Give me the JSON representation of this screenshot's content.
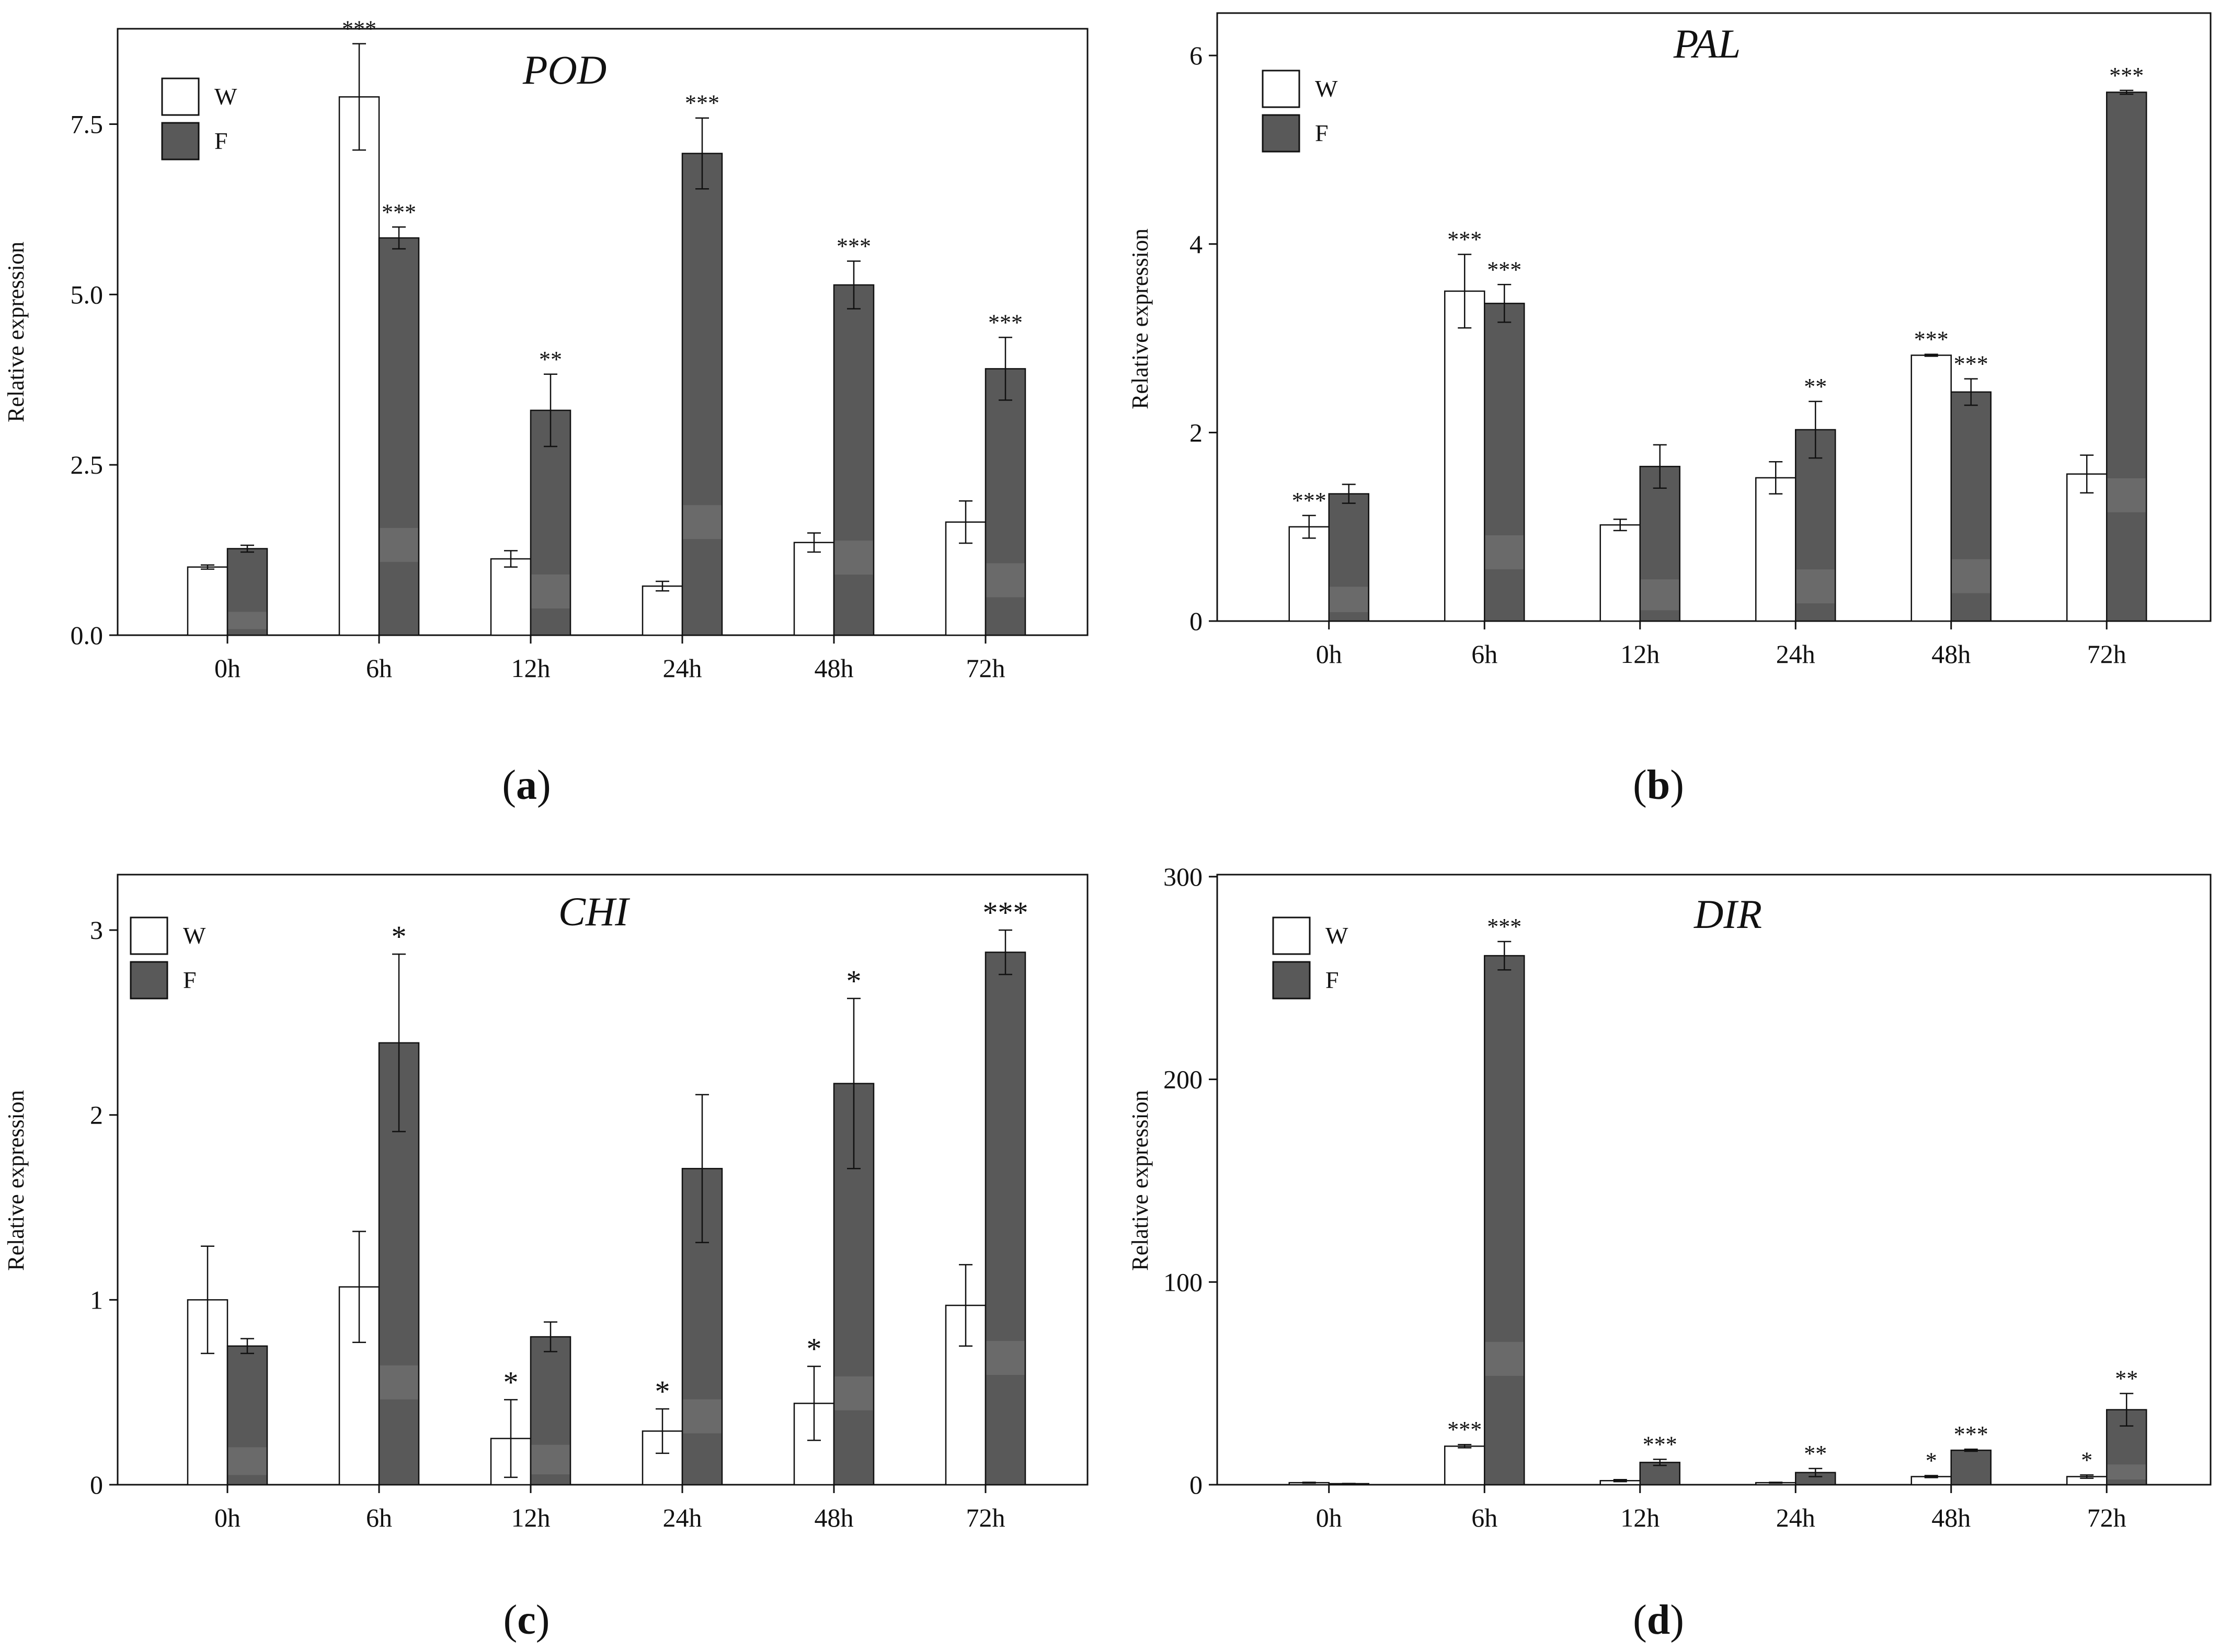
{
  "colors": {
    "w_fill": "#ffffff",
    "f_fill": "#595959",
    "f_band": "#6a6a6a",
    "stroke": "#111111"
  },
  "chart_data": [
    {
      "type": "bar",
      "panel_label": "(a)",
      "panel_letter": "a",
      "title": "POD",
      "xlabel": "",
      "ylabel": "Relative expression",
      "ylim": [
        0,
        8.9
      ],
      "yticks": [
        0,
        2.5,
        5,
        7.5
      ],
      "ytick_labels": [
        "0.0",
        "2.5",
        "5.0",
        "7.5"
      ],
      "categories": [
        "0h",
        "6h",
        "12h",
        "24h",
        "48h",
        "72h"
      ],
      "legend_position": "top-left",
      "series": [
        {
          "name": "W",
          "values": [
            1.0,
            7.9,
            1.12,
            0.72,
            1.36,
            1.66
          ],
          "errors": [
            0.03,
            0.78,
            0.12,
            0.07,
            0.14,
            0.31
          ],
          "sig": [
            "",
            "***",
            "",
            "",
            "",
            ""
          ]
        },
        {
          "name": "F",
          "values": [
            1.27,
            5.83,
            3.3,
            7.07,
            5.14,
            3.91
          ],
          "errors": [
            0.05,
            0.16,
            0.53,
            0.52,
            0.35,
            0.46
          ],
          "sig": [
            "",
            "***",
            "**",
            "***",
            "***",
            "***"
          ]
        }
      ]
    },
    {
      "type": "bar",
      "panel_label": "(b)",
      "panel_letter": "b",
      "title": "PAL",
      "xlabel": "",
      "ylabel": "Relative expression",
      "ylim": [
        0,
        6.45
      ],
      "yticks": [
        0,
        2,
        4,
        6
      ],
      "ytick_labels": [
        "0",
        "2",
        "4",
        "6"
      ],
      "categories": [
        "0h",
        "6h",
        "12h",
        "24h",
        "48h",
        "72h"
      ],
      "legend_position": "top-left",
      "series": [
        {
          "name": "W",
          "values": [
            1.0,
            3.5,
            1.02,
            1.52,
            2.82,
            1.56
          ],
          "errors": [
            0.12,
            0.39,
            0.06,
            0.17,
            0.01,
            0.2
          ],
          "sig": [
            "***",
            "***",
            "",
            "",
            "***",
            ""
          ]
        },
        {
          "name": "F",
          "values": [
            1.35,
            3.37,
            1.64,
            2.03,
            2.43,
            5.61
          ],
          "errors": [
            0.1,
            0.2,
            0.23,
            0.3,
            0.14,
            0.02
          ],
          "sig": [
            "",
            "***",
            "",
            "**",
            "***",
            "***"
          ]
        }
      ]
    },
    {
      "type": "bar",
      "panel_label": "(c)",
      "panel_letter": "c",
      "title": "CHI",
      "xlabel": "",
      "ylabel": "Relative expression",
      "ylim": [
        0,
        3.3
      ],
      "yticks": [
        0,
        1,
        2,
        3
      ],
      "ytick_labels": [
        "0",
        "1",
        "2",
        "3"
      ],
      "categories": [
        "0h",
        "6h",
        "12h",
        "24h",
        "48h",
        "72h"
      ],
      "legend_position": "top-left",
      "series": [
        {
          "name": "W",
          "values": [
            1.0,
            1.07,
            0.25,
            0.29,
            0.44,
            0.97
          ],
          "errors": [
            0.29,
            0.3,
            0.21,
            0.12,
            0.2,
            0.22
          ],
          "sig": [
            "",
            "",
            "*",
            "*",
            "*",
            ""
          ]
        },
        {
          "name": "F",
          "values": [
            0.75,
            2.39,
            0.8,
            1.71,
            2.17,
            2.88
          ],
          "errors": [
            0.04,
            0.48,
            0.08,
            0.4,
            0.46,
            0.12
          ],
          "sig": [
            "",
            "*",
            "",
            "",
            "*",
            "***"
          ]
        }
      ]
    },
    {
      "type": "bar",
      "panel_label": "(d)",
      "panel_letter": "d",
      "title": "DIR",
      "xlabel": "",
      "ylabel": "Relative expression",
      "ylim": [
        0,
        301
      ],
      "yticks": [
        0,
        100,
        200,
        300
      ],
      "ytick_labels": [
        "0",
        "100",
        "200",
        "300"
      ],
      "categories": [
        "0h",
        "6h",
        "12h",
        "24h",
        "48h",
        "72h"
      ],
      "legend_position": "top-left",
      "series": [
        {
          "name": "W",
          "values": [
            1.0,
            19.0,
            2.0,
            1.0,
            4.0,
            4.0
          ],
          "errors": [
            0.2,
            0.8,
            0.5,
            0.2,
            0.5,
            0.8
          ],
          "sig": [
            "",
            "***",
            "",
            "",
            "*",
            "*"
          ]
        },
        {
          "name": "F",
          "values": [
            0.5,
            261.0,
            11.0,
            6.0,
            17.0,
            37.0
          ],
          "errors": [
            0.1,
            7.0,
            1.5,
            2.0,
            0.5,
            8.0
          ],
          "sig": [
            "",
            "***",
            "***",
            "**",
            "***",
            "**"
          ]
        }
      ]
    }
  ]
}
